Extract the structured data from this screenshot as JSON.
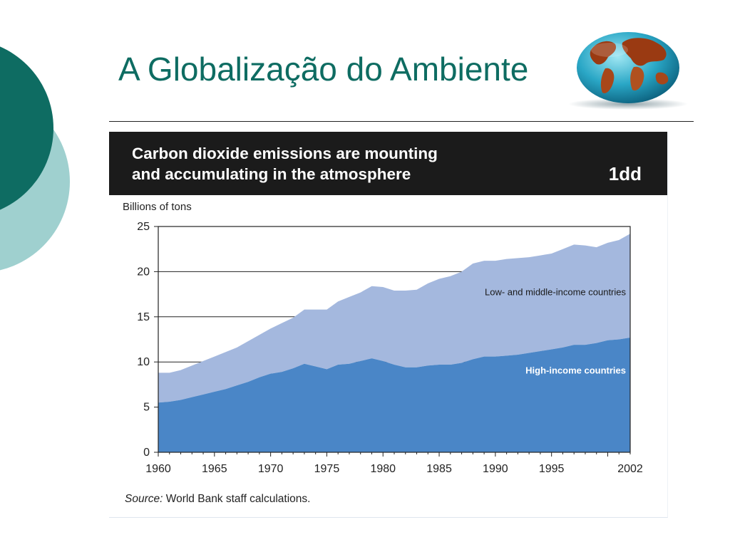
{
  "slide": {
    "title": "A Globalização do Ambiente"
  },
  "colors": {
    "title": "#0e6c62",
    "deco_dark": "#0e6c62",
    "deco_light": "#9fd0cf",
    "high_income": "#4a86c7",
    "low_middle_income": "#a4b8de",
    "header_bg": "#1b1b1b"
  },
  "chart_data": {
    "type": "area",
    "title_line1": "Carbon dioxide emissions are mounting",
    "title_line2": "and accumulating in the atmosphere",
    "figure_number": "1dd",
    "ylabel": "Billions of tons",
    "ylim": [
      0,
      25
    ],
    "xlim": [
      1960,
      2002
    ],
    "yticks": [
      "0",
      "5",
      "10",
      "15",
      "20",
      "25"
    ],
    "xticks": [
      "1960",
      "1965",
      "1970",
      "1975",
      "1980",
      "1985",
      "1990",
      "1995",
      "2002"
    ],
    "stacked": true,
    "series": [
      {
        "name": "High-income countries",
        "color": "#4a86c7",
        "x": [
          1960,
          1961,
          1962,
          1963,
          1964,
          1965,
          1966,
          1967,
          1968,
          1969,
          1970,
          1971,
          1972,
          1973,
          1974,
          1975,
          1976,
          1977,
          1978,
          1979,
          1980,
          1981,
          1982,
          1983,
          1984,
          1985,
          1986,
          1987,
          1988,
          1989,
          1990,
          1991,
          1992,
          1993,
          1994,
          1995,
          1996,
          1997,
          1998,
          1999,
          2000,
          2001,
          2002
        ],
        "values": [
          5.5,
          5.6,
          5.8,
          6.1,
          6.4,
          6.7,
          7.0,
          7.4,
          7.8,
          8.3,
          8.7,
          8.9,
          9.3,
          9.8,
          9.5,
          9.2,
          9.7,
          9.8,
          10.1,
          10.4,
          10.1,
          9.7,
          9.4,
          9.4,
          9.6,
          9.7,
          9.7,
          9.9,
          10.3,
          10.6,
          10.6,
          10.7,
          10.8,
          11.0,
          11.2,
          11.4,
          11.6,
          11.9,
          11.9,
          12.1,
          12.4,
          12.5,
          12.7
        ]
      },
      {
        "name": "Low- and middle-income countries",
        "color": "#a4b8de",
        "x": [
          1960,
          1961,
          1962,
          1963,
          1964,
          1965,
          1966,
          1967,
          1968,
          1969,
          1970,
          1971,
          1972,
          1973,
          1974,
          1975,
          1976,
          1977,
          1978,
          1979,
          1980,
          1981,
          1982,
          1983,
          1984,
          1985,
          1986,
          1987,
          1988,
          1989,
          1990,
          1991,
          1992,
          1993,
          1994,
          1995,
          1996,
          1997,
          1998,
          1999,
          2000,
          2001,
          2002
        ],
        "values": [
          3.3,
          3.2,
          3.3,
          3.5,
          3.7,
          3.9,
          4.1,
          4.2,
          4.5,
          4.7,
          5.0,
          5.4,
          5.6,
          6.0,
          6.3,
          6.6,
          7.0,
          7.4,
          7.6,
          8.0,
          8.2,
          8.2,
          8.5,
          8.6,
          9.1,
          9.5,
          9.8,
          10.1,
          10.6,
          10.6,
          10.6,
          10.7,
          10.7,
          10.6,
          10.6,
          10.6,
          10.9,
          11.1,
          11.0,
          10.6,
          10.8,
          11.0,
          11.5
        ]
      }
    ],
    "labels": {
      "low_middle": "Low- and middle-income countries",
      "high": "High-income countries"
    },
    "source_prefix": "Source:",
    "source_text": " World Bank staff calculations."
  }
}
